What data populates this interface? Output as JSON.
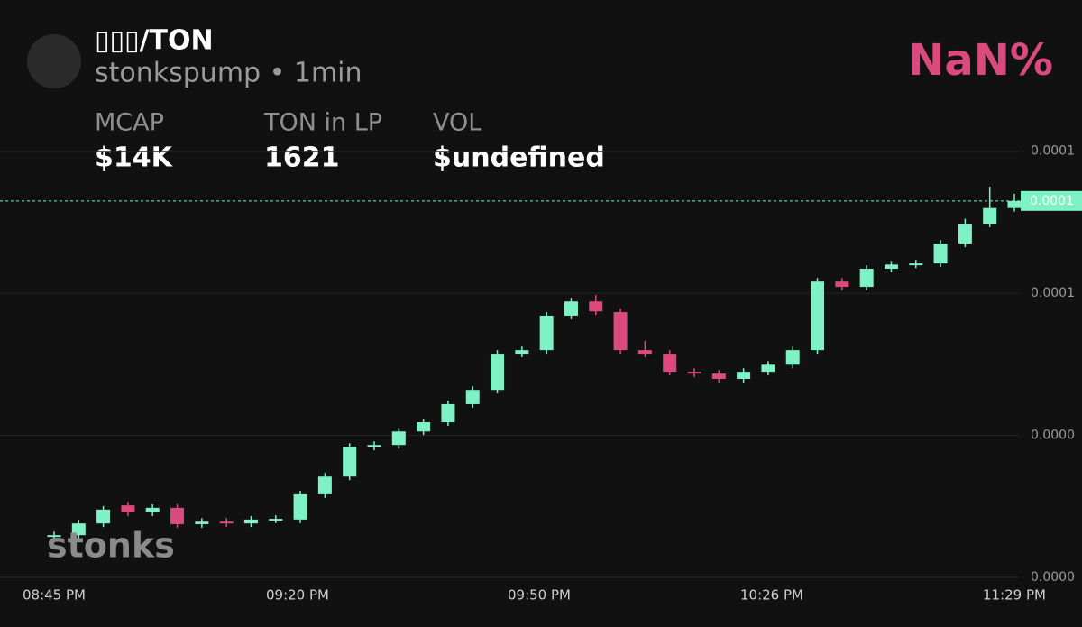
{
  "chart_data": {
    "type": "candlestick",
    "title": "▯▯▯/TON",
    "subtitle": "stonkspump • 1min",
    "change": "NaN%",
    "stats": [
      {
        "label": "MCAP",
        "value": "$14K"
      },
      {
        "label": "TON in LP",
        "value": "1621"
      },
      {
        "label": "VOL",
        "value": "$undefined"
      }
    ],
    "watermark": "stonks",
    "up_color": "#7ef2c4",
    "down_color": "#da4a7c",
    "grid": true,
    "ylim": [
      0,
      0.000124
    ],
    "yticks": [
      {
        "value": 0,
        "label": "0.0000"
      },
      {
        "value": 4e-05,
        "label": "0.0000"
      },
      {
        "value": 8e-05,
        "label": "0.0001"
      },
      {
        "value": 0.00012,
        "label": "0.0001"
      }
    ],
    "xticks": [
      "08:45 PM",
      "09:20 PM",
      "09:50 PM",
      "10:26 PM",
      "11:29 PM"
    ],
    "last_price": {
      "value": 0.000106,
      "label": "0.0001"
    },
    "open": [
      1.14e-05,
      1.19e-05,
      1.52e-05,
      2.03e-05,
      1.83e-05,
      1.96e-05,
      1.5e-05,
      1.57e-05,
      1.52e-05,
      1.63e-05,
      1.63e-05,
      2.34e-05,
      2.84e-05,
      3.68e-05,
      3.73e-05,
      4.11e-05,
      4.37e-05,
      4.88e-05,
      5.28e-05,
      6.3e-05,
      6.4e-05,
      7.37e-05,
      7.77e-05,
      7.47e-05,
      6.4e-05,
      6.3e-05,
      5.79e-05,
      5.74e-05,
      5.59e-05,
      5.79e-05,
      5.99e-05,
      6.4e-05,
      8.33e-05,
      8.18e-05,
      8.69e-05,
      8.81e-05,
      8.84e-05,
      9.4e-05,
      9.96e-05,
      0.000104
    ],
    "high": [
      1.29e-05,
      1.62e-05,
      2.01e-05,
      2.13e-05,
      2.06e-05,
      2.06e-05,
      1.67e-05,
      1.67e-05,
      1.73e-05,
      1.75e-05,
      2.44e-05,
      2.94e-05,
      3.78e-05,
      3.83e-05,
      4.21e-05,
      4.47e-05,
      4.98e-05,
      5.38e-05,
      6.4e-05,
      6.5e-05,
      7.47e-05,
      7.87e-05,
      7.95e-05,
      7.57e-05,
      6.66e-05,
      6.4e-05,
      5.89e-05,
      5.84e-05,
      5.89e-05,
      6.09e-05,
      6.5e-05,
      8.43e-05,
      8.43e-05,
      8.79e-05,
      8.91e-05,
      8.94e-05,
      9.5e-05,
      0.000101,
      0.00011,
      0.000108
    ],
    "low": [
      1.04e-05,
      1.09e-05,
      1.42e-05,
      1.73e-05,
      1.73e-05,
      1.4e-05,
      1.4e-05,
      1.42e-05,
      1.42e-05,
      1.53e-05,
      1.53e-05,
      2.24e-05,
      2.74e-05,
      3.58e-05,
      3.63e-05,
      4.01e-05,
      4.27e-05,
      4.78e-05,
      5.18e-05,
      6.2e-05,
      6.3e-05,
      7.27e-05,
      7.39e-05,
      6.3e-05,
      6.2e-05,
      5.69e-05,
      5.64e-05,
      5.49e-05,
      5.49e-05,
      5.69e-05,
      5.89e-05,
      6.3e-05,
      8.08e-05,
      8.08e-05,
      8.59e-05,
      8.71e-05,
      8.74e-05,
      9.3e-05,
      9.86e-05,
      0.000103
    ],
    "close": [
      1.19e-05,
      1.52e-05,
      1.91e-05,
      1.83e-05,
      1.96e-05,
      1.5e-05,
      1.57e-05,
      1.52e-05,
      1.63e-05,
      1.65e-05,
      2.34e-05,
      2.84e-05,
      3.68e-05,
      3.73e-05,
      4.11e-05,
      4.37e-05,
      4.88e-05,
      5.28e-05,
      6.3e-05,
      6.4e-05,
      7.37e-05,
      7.77e-05,
      7.49e-05,
      6.4e-05,
      6.3e-05,
      5.79e-05,
      5.74e-05,
      5.59e-05,
      5.79e-05,
      5.99e-05,
      6.4e-05,
      8.33e-05,
      8.18e-05,
      8.69e-05,
      8.81e-05,
      8.84e-05,
      9.4e-05,
      9.96e-05,
      0.000104,
      0.000106
    ]
  }
}
